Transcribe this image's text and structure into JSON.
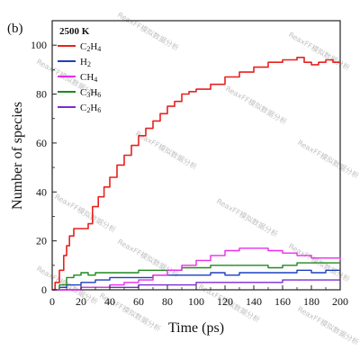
{
  "panel_label": "(b)",
  "watermark_text": "ReaxFF模拟数据分析",
  "chart_data": {
    "type": "line",
    "xlabel": "Time (ps)",
    "ylabel": "Number of species",
    "xlim": [
      0,
      200
    ],
    "ylim": [
      0,
      110
    ],
    "x_ticks": [
      0,
      20,
      40,
      60,
      80,
      100,
      120,
      140,
      160,
      180,
      200
    ],
    "y_ticks": [
      0,
      20,
      40,
      60,
      80,
      100
    ],
    "grid": false,
    "legend_position": "top-left",
    "legend_title": "2500 K",
    "series": [
      {
        "name": "C2H4",
        "label_base": "C",
        "label_sub1": "2",
        "label_mid": "H",
        "label_sub2": "4",
        "color": "#e8211e",
        "points": [
          [
            0,
            0
          ],
          [
            2,
            3
          ],
          [
            5,
            8
          ],
          [
            8,
            14
          ],
          [
            10,
            18
          ],
          [
            12,
            22
          ],
          [
            15,
            25
          ],
          [
            20,
            25
          ],
          [
            25,
            27
          ],
          [
            28,
            34
          ],
          [
            32,
            38
          ],
          [
            36,
            42
          ],
          [
            40,
            46
          ],
          [
            45,
            51
          ],
          [
            50,
            55
          ],
          [
            55,
            59
          ],
          [
            60,
            63
          ],
          [
            65,
            66
          ],
          [
            70,
            69
          ],
          [
            75,
            72
          ],
          [
            80,
            75
          ],
          [
            85,
            77
          ],
          [
            90,
            80
          ],
          [
            95,
            81
          ],
          [
            100,
            82
          ],
          [
            110,
            84
          ],
          [
            120,
            87
          ],
          [
            130,
            89
          ],
          [
            140,
            91
          ],
          [
            150,
            93
          ],
          [
            160,
            94
          ],
          [
            170,
            95
          ],
          [
            175,
            93
          ],
          [
            180,
            92
          ],
          [
            185,
            93
          ],
          [
            190,
            94
          ],
          [
            195,
            93
          ],
          [
            200,
            93
          ]
        ]
      },
      {
        "name": "H2",
        "label_base": "H",
        "label_sub1": "2",
        "label_mid": "",
        "label_sub2": "",
        "color": "#1f3fbf",
        "points": [
          [
            0,
            0
          ],
          [
            5,
            1
          ],
          [
            10,
            2
          ],
          [
            20,
            3
          ],
          [
            30,
            4
          ],
          [
            40,
            5
          ],
          [
            50,
            5
          ],
          [
            60,
            5
          ],
          [
            70,
            6
          ],
          [
            80,
            6
          ],
          [
            90,
            6
          ],
          [
            100,
            6
          ],
          [
            110,
            7
          ],
          [
            120,
            6
          ],
          [
            130,
            7
          ],
          [
            140,
            7
          ],
          [
            150,
            7
          ],
          [
            160,
            7
          ],
          [
            170,
            8
          ],
          [
            180,
            7
          ],
          [
            190,
            8
          ],
          [
            200,
            8
          ]
        ]
      },
      {
        "name": "CH4",
        "label_base": "C",
        "label_sub1": "",
        "label_mid": "H",
        "label_sub2": "4",
        "color": "#e82ee8",
        "points": [
          [
            0,
            0
          ],
          [
            20,
            1
          ],
          [
            40,
            2
          ],
          [
            50,
            3
          ],
          [
            60,
            4
          ],
          [
            70,
            6
          ],
          [
            80,
            8
          ],
          [
            90,
            10
          ],
          [
            100,
            12
          ],
          [
            110,
            14
          ],
          [
            120,
            16
          ],
          [
            130,
            17
          ],
          [
            140,
            17
          ],
          [
            150,
            16
          ],
          [
            160,
            15
          ],
          [
            170,
            14
          ],
          [
            180,
            13
          ],
          [
            190,
            13
          ],
          [
            200,
            12
          ]
        ]
      },
      {
        "name": "C3H6",
        "label_base": "C",
        "label_sub1": "3",
        "label_mid": "H",
        "label_sub2": "6",
        "color": "#1e8a1e",
        "points": [
          [
            0,
            0
          ],
          [
            5,
            2
          ],
          [
            10,
            5
          ],
          [
            15,
            6
          ],
          [
            20,
            7
          ],
          [
            25,
            6
          ],
          [
            30,
            7
          ],
          [
            40,
            7
          ],
          [
            50,
            7
          ],
          [
            60,
            8
          ],
          [
            70,
            8
          ],
          [
            80,
            8
          ],
          [
            90,
            9
          ],
          [
            100,
            9
          ],
          [
            110,
            10
          ],
          [
            120,
            10
          ],
          [
            130,
            10
          ],
          [
            140,
            10
          ],
          [
            150,
            9
          ],
          [
            160,
            10
          ],
          [
            170,
            11
          ],
          [
            180,
            11
          ],
          [
            190,
            11
          ],
          [
            200,
            11
          ]
        ]
      },
      {
        "name": "C2H6",
        "label_base": "C",
        "label_sub1": "2",
        "label_mid": "H",
        "label_sub2": "6",
        "color": "#7d2ad1",
        "points": [
          [
            0,
            0
          ],
          [
            20,
            1
          ],
          [
            40,
            1
          ],
          [
            60,
            2
          ],
          [
            80,
            2
          ],
          [
            100,
            3
          ],
          [
            120,
            3
          ],
          [
            140,
            3
          ],
          [
            160,
            4
          ],
          [
            180,
            4
          ],
          [
            200,
            4
          ]
        ]
      }
    ]
  }
}
